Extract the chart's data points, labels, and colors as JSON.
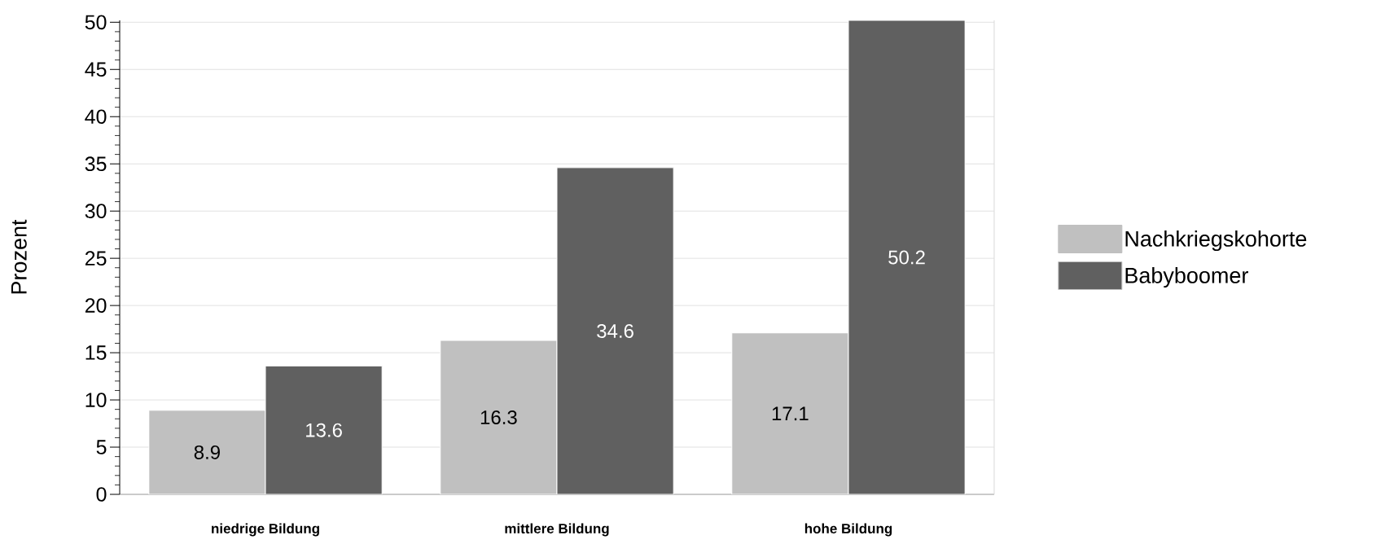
{
  "chart_data": {
    "type": "bar",
    "ylabel": "Prozent",
    "categories": [
      "niedrige Bildung",
      "mittlere Bildung",
      "hohe Bildung"
    ],
    "series": [
      {
        "name": "Nachkriegskohorte",
        "color": "#c0c0c0",
        "values": [
          8.9,
          16.3,
          17.1
        ],
        "value_labels": [
          "8.9",
          "16.3",
          "17.1"
        ]
      },
      {
        "name": "Babyboomer",
        "color": "#606060",
        "values": [
          13.6,
          34.6,
          50.2
        ],
        "value_labels": [
          "13.6",
          "34.6",
          "50.2"
        ]
      }
    ],
    "ylim": [
      0,
      50.2
    ],
    "yticks": [
      0,
      5,
      10,
      15,
      20,
      25,
      30,
      35,
      40,
      45,
      50
    ],
    "grid": "y",
    "legend": "right"
  }
}
